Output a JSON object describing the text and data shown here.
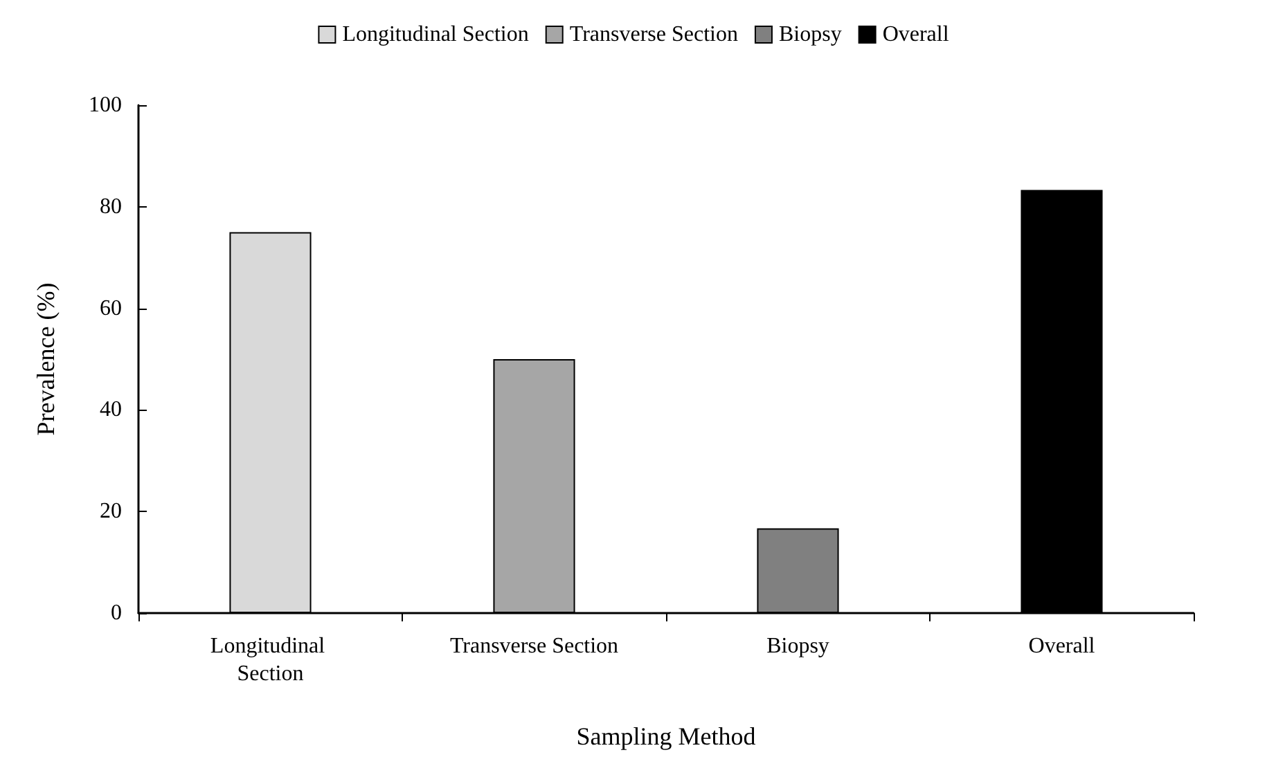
{
  "chart_data": {
    "type": "bar",
    "xlabel": "Sampling Method",
    "ylabel": "Prevalence (%)",
    "categories": [
      "Longitudinal Section",
      "Transverse Section",
      "Biopsy",
      "Overall"
    ],
    "series": [
      {
        "name": "Longitudinal Section",
        "color": "#d9d9d9",
        "values": [
          75,
          null,
          null,
          null
        ]
      },
      {
        "name": "Transverse Section",
        "color": "#a6a6a6",
        "values": [
          null,
          50,
          null,
          null
        ]
      },
      {
        "name": "Biopsy",
        "color": "#808080",
        "values": [
          null,
          null,
          16.7,
          null
        ]
      },
      {
        "name": "Overall",
        "color": "#000000",
        "values": [
          null,
          null,
          null,
          83.3
        ]
      }
    ],
    "stacked": true,
    "ylim": [
      0,
      100
    ],
    "yticks": [
      0,
      20,
      40,
      60,
      80,
      100
    ],
    "grid": false,
    "legend": "top"
  }
}
